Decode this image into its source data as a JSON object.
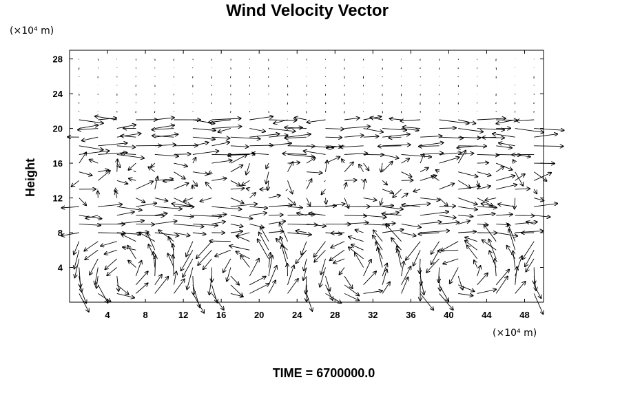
{
  "chart_data": {
    "type": "quiver",
    "title": "Wind Velocity Vector",
    "ylabel": "Height",
    "xlabel": "",
    "x_unit_label": "(×10⁴ m)",
    "y_unit_label": "(×10⁴ m)",
    "xlim": [
      0,
      50
    ],
    "ylim": [
      0,
      29
    ],
    "x_ticks": [
      "4",
      "8",
      "12",
      "16",
      "20",
      "24",
      "28",
      "32",
      "36",
      "40",
      "44",
      "48"
    ],
    "y_ticks": [
      "4",
      "8",
      "12",
      "16",
      "20",
      "24",
      "28"
    ],
    "grid": false,
    "vector_field": {
      "x_step": 2,
      "y_step": 1,
      "note_rows": [
        {
          "y_range": [
            22,
            29
          ],
          "flow": "calm"
        },
        {
          "y_range": [
            17,
            21
          ],
          "flow": "strong eastward jet"
        },
        {
          "y_range": [
            12,
            16
          ],
          "flow": "mixed/turbulent"
        },
        {
          "y_range": [
            8,
            11
          ],
          "flow": "strong eastward jet"
        },
        {
          "y_range": [
            0,
            7
          ],
          "flow": "vortical circulations"
        }
      ]
    },
    "footer": "TIME = 6700000.0"
  }
}
